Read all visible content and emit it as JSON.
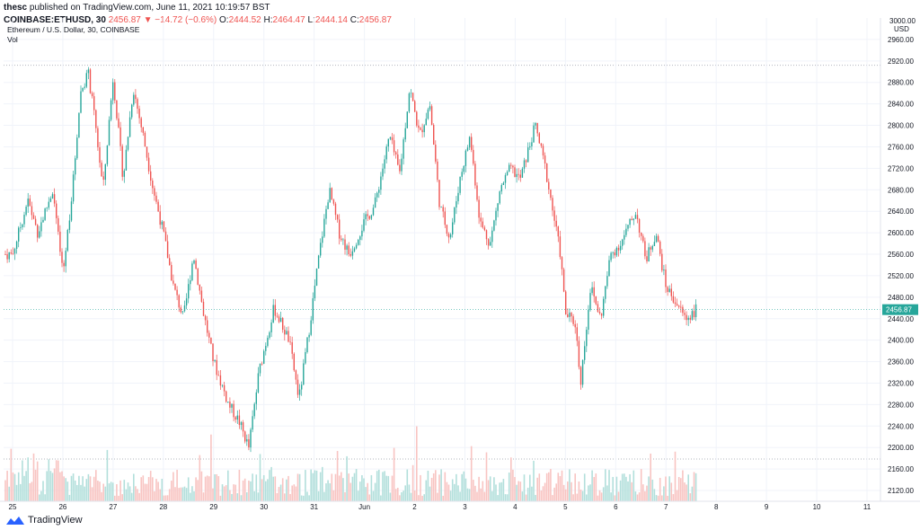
{
  "header": {
    "author": "thesc",
    "published": "published on TradingView.com, June 11, 2021 10:19:57 BST",
    "symbol": "COINBASE:ETHUSD, 30",
    "last": "2456.87",
    "change": "▼ −14.72 (−0.6%)",
    "o_label": "O:",
    "o": "2444.52",
    "h_label": "H:",
    "h": "2464.47",
    "l_label": "L:",
    "l": "2444.14",
    "c_label": "C:",
    "c": "2456.87"
  },
  "legend": {
    "title": "Ethereum / U.S. Dollar, 30, COINBASE",
    "vol": "Vol"
  },
  "footer": {
    "brand": "TradingView"
  },
  "colors": {
    "up": "#26a69a",
    "down": "#ef5350",
    "up_vol": "#b2dfdb",
    "down_vol": "#f8c4c2",
    "price_line": "#26a69a"
  },
  "chart_data": {
    "type": "candlestick",
    "title": "Ethereum / U.S. Dollar, 30, COINBASE",
    "y_axis_unit": "USD",
    "ylim": [
      2100,
      3000
    ],
    "y_ticks": [
      2120,
      2160,
      2200,
      2240,
      2280,
      2320,
      2360,
      2400,
      2440,
      2480,
      2520,
      2560,
      2600,
      2640,
      2680,
      2720,
      2760,
      2800,
      2840,
      2880,
      2920,
      2960
    ],
    "y_top_partial": "3000.00",
    "x_ticks": [
      "25",
      "26",
      "27",
      "28",
      "29",
      "30",
      "31",
      "Jun",
      "2",
      "3",
      "4",
      "5",
      "6",
      "7",
      "8",
      "9",
      "10",
      "11"
    ],
    "last_price": 2456.87,
    "grid": true,
    "price_path_anchors": [
      [
        0,
        2560
      ],
      [
        0.3,
        2660
      ],
      [
        0.5,
        2600
      ],
      [
        0.8,
        2680
      ],
      [
        1.0,
        2520
      ],
      [
        1.2,
        2690
      ],
      [
        1.35,
        2860
      ],
      [
        1.5,
        2900
      ],
      [
        1.65,
        2800
      ],
      [
        1.8,
        2680
      ],
      [
        2.0,
        2890
      ],
      [
        2.2,
        2700
      ],
      [
        2.4,
        2870
      ],
      [
        2.6,
        2780
      ],
      [
        2.8,
        2680
      ],
      [
        3.0,
        2600
      ],
      [
        3.2,
        2500
      ],
      [
        3.4,
        2440
      ],
      [
        3.6,
        2560
      ],
      [
        3.8,
        2450
      ],
      [
        4.0,
        2360
      ],
      [
        4.3,
        2280
      ],
      [
        4.5,
        2250
      ],
      [
        4.7,
        2200
      ],
      [
        4.9,
        2340
      ],
      [
        5.2,
        2460
      ],
      [
        5.5,
        2400
      ],
      [
        5.7,
        2290
      ],
      [
        5.9,
        2420
      ],
      [
        6.1,
        2560
      ],
      [
        6.3,
        2680
      ],
      [
        6.5,
        2600
      ],
      [
        6.7,
        2560
      ],
      [
        7.0,
        2620
      ],
      [
        7.2,
        2650
      ],
      [
        7.5,
        2780
      ],
      [
        7.7,
        2710
      ],
      [
        7.9,
        2870
      ],
      [
        8.1,
        2780
      ],
      [
        8.3,
        2840
      ],
      [
        8.5,
        2650
      ],
      [
        8.7,
        2590
      ],
      [
        8.9,
        2700
      ],
      [
        9.1,
        2780
      ],
      [
        9.3,
        2620
      ],
      [
        9.5,
        2580
      ],
      [
        9.7,
        2680
      ],
      [
        9.9,
        2720
      ],
      [
        10.1,
        2700
      ],
      [
        10.4,
        2800
      ],
      [
        10.6,
        2720
      ],
      [
        10.9,
        2560
      ],
      [
        11.0,
        2450
      ],
      [
        11.2,
        2430
      ],
      [
        11.3,
        2320
      ],
      [
        11.5,
        2500
      ],
      [
        11.7,
        2440
      ],
      [
        11.9,
        2560
      ],
      [
        12.1,
        2580
      ],
      [
        12.4,
        2640
      ],
      [
        12.6,
        2550
      ],
      [
        12.8,
        2600
      ],
      [
        13.0,
        2500
      ],
      [
        13.2,
        2470
      ],
      [
        13.4,
        2440
      ],
      [
        13.6,
        2456.87
      ]
    ]
  }
}
